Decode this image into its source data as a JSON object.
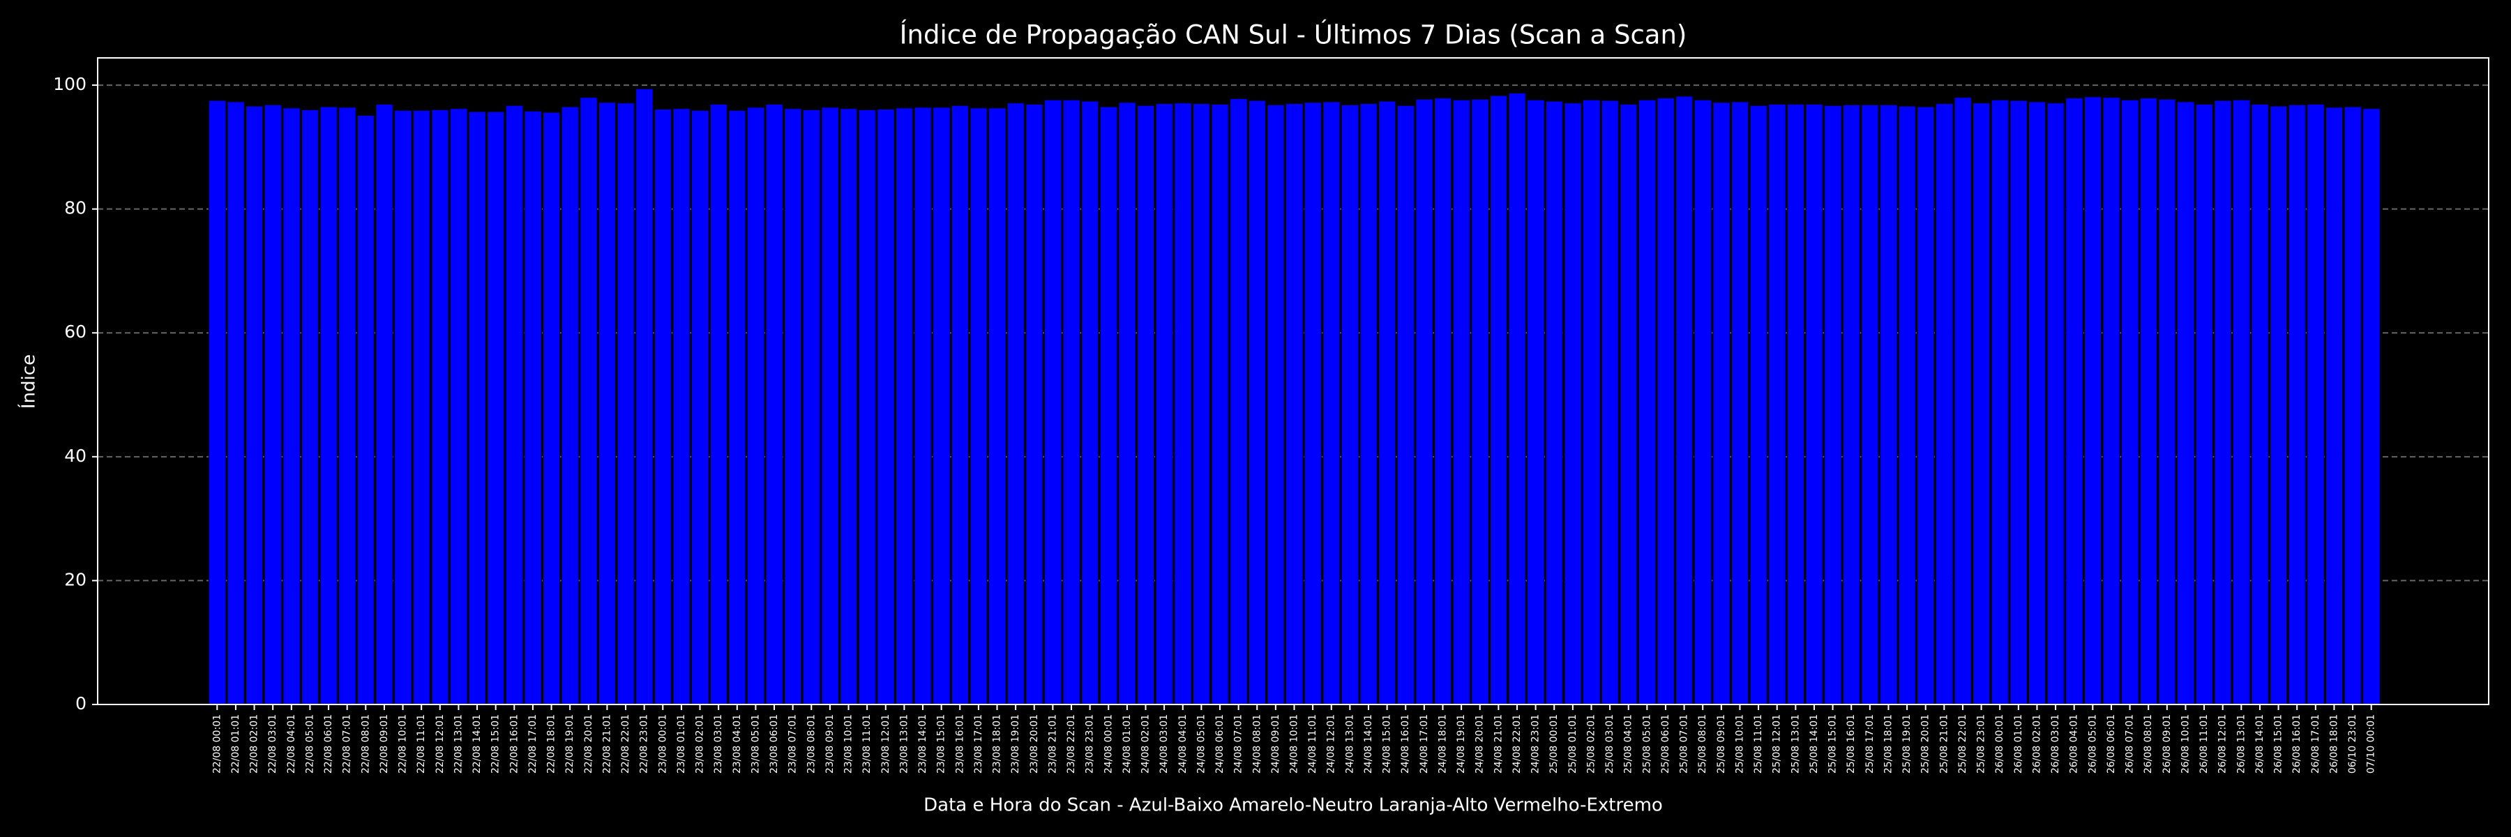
{
  "chart_data": {
    "type": "bar",
    "title": "Índice de Propagação CAN Sul - Últimos 7 Dias (Scan a Scan)",
    "x_label": "Data e Hora do Scan - Azul-Baixo Amarelo-Neutro Laranja-Alto Vermelho-Extremo",
    "y_label": "Índice",
    "color": "#0000ff",
    "categories": [
      "22/08 00:01",
      "22/08 01:01",
      "22/08 02:01",
      "22/08 03:01",
      "22/08 04:01",
      "22/08 05:01",
      "22/08 06:01",
      "22/08 07:01",
      "22/08 08:01",
      "22/08 09:01",
      "22/08 10:01",
      "22/08 11:01",
      "22/08 12:01",
      "22/08 13:01",
      "22/08 14:01",
      "22/08 15:01",
      "22/08 16:01",
      "22/08 17:01",
      "22/08 18:01",
      "22/08 19:01",
      "22/08 20:01",
      "22/08 21:01",
      "22/08 22:01",
      "22/08 23:01",
      "23/08 00:01",
      "23/08 01:01",
      "23/08 02:01",
      "23/08 03:01",
      "23/08 04:01",
      "23/08 05:01",
      "23/08 06:01",
      "23/08 07:01",
      "23/08 08:01",
      "23/08 09:01",
      "23/08 10:01",
      "23/08 11:01",
      "23/08 12:01",
      "23/08 13:01",
      "23/08 14:01",
      "23/08 15:01",
      "23/08 16:01",
      "23/08 17:01",
      "23/08 18:01",
      "23/08 19:01",
      "23/08 20:01",
      "23/08 21:01",
      "23/08 22:01",
      "23/08 23:01",
      "24/08 00:01",
      "24/08 01:01",
      "24/08 02:01",
      "24/08 03:01",
      "24/08 04:01",
      "24/08 05:01",
      "24/08 06:01",
      "24/08 07:01",
      "24/08 08:01",
      "24/08 09:01",
      "24/08 10:01",
      "24/08 11:01",
      "24/08 12:01",
      "24/08 13:01",
      "24/08 14:01",
      "24/08 15:01",
      "24/08 16:01",
      "24/08 17:01",
      "24/08 18:01",
      "24/08 19:01",
      "24/08 20:01",
      "24/08 21:01",
      "24/08 22:01",
      "24/08 23:01",
      "25/08 00:01",
      "25/08 01:01",
      "25/08 02:01",
      "25/08 03:01",
      "25/08 04:01",
      "25/08 05:01",
      "25/08 06:01",
      "25/08 07:01",
      "25/08 08:01",
      "25/08 09:01",
      "25/08 10:01",
      "25/08 11:01",
      "25/08 12:01",
      "25/08 13:01",
      "25/08 14:01",
      "25/08 15:01",
      "25/08 16:01",
      "25/08 17:01",
      "25/08 18:01",
      "25/08 19:01",
      "25/08 20:01",
      "25/08 21:01",
      "25/08 22:01",
      "25/08 23:01",
      "26/08 00:01",
      "26/08 01:01",
      "26/08 02:01",
      "26/08 03:01",
      "26/08 04:01",
      "26/08 05:01",
      "26/08 06:01",
      "26/08 07:01",
      "26/08 08:01",
      "26/08 09:01",
      "26/08 10:01",
      "26/08 11:01",
      "26/08 12:01",
      "26/08 13:01",
      "26/08 14:01",
      "26/08 15:01",
      "26/08 16:01",
      "26/08 17:01",
      "26/08 18:01",
      "06/10 23:01",
      "07/10 00:01"
    ],
    "values": [
      97.5,
      97.3,
      96.6,
      96.8,
      96.3,
      96.0,
      96.5,
      96.4,
      95.1,
      96.9,
      95.9,
      95.9,
      96.0,
      96.2,
      95.7,
      95.7,
      96.7,
      95.8,
      95.6,
      96.5,
      98.0,
      97.2,
      97.1,
      99.4,
      96.1,
      96.2,
      95.9,
      96.9,
      95.9,
      96.4,
      96.9,
      96.2,
      96.0,
      96.4,
      96.2,
      96.0,
      96.1,
      96.3,
      96.4,
      96.4,
      96.7,
      96.3,
      96.3,
      97.1,
      96.9,
      97.6,
      97.6,
      97.4,
      96.5,
      97.2,
      96.7,
      97.0,
      97.1,
      97.0,
      96.9,
      97.8,
      97.5,
      96.8,
      97.0,
      97.2,
      97.3,
      96.8,
      97.0,
      97.4,
      96.7,
      97.7,
      97.9,
      97.6,
      97.7,
      98.3,
      98.7,
      97.6,
      97.4,
      97.1,
      97.6,
      97.5,
      96.9,
      97.6,
      97.9,
      98.2,
      97.6,
      97.2,
      97.3,
      96.7,
      96.9,
      96.9,
      96.9,
      96.7,
      96.8,
      96.8,
      96.8,
      96.6,
      96.5,
      97.0,
      98.0,
      97.1,
      97.6,
      97.5,
      97.3,
      97.1,
      97.9,
      98.1,
      98.0,
      97.6,
      97.9,
      97.7,
      97.3,
      96.9,
      97.5,
      97.6,
      96.9,
      96.6,
      96.8,
      96.9,
      96.4,
      96.5,
      96.2
    ],
    "ylim": [
      0,
      104.4
    ],
    "yticks": [
      0,
      20,
      40,
      60,
      80,
      100
    ],
    "grid": true
  }
}
